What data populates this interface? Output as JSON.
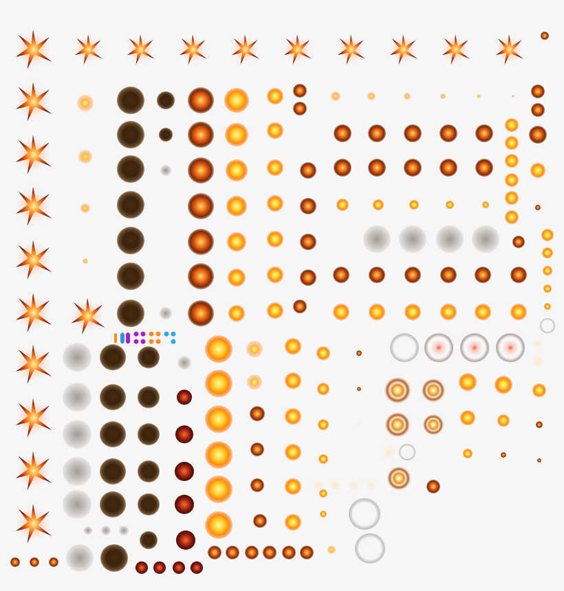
{
  "sheet": {
    "background": "#f6f6f6",
    "palette": {
      "fire_core": "#fff7b0",
      "fire_mid": "#ffd02a",
      "fire_edge": "#ff8a10",
      "burst_dark": "#7a2a08",
      "smoke_dark": "#3a2410",
      "ember_red": "#8a1a10",
      "gem_orange": "#ff8a20",
      "gem_purple": "#a020d0",
      "gem_blue": "#2aa8f0"
    },
    "frame_sets": [
      {
        "name": "spiked-explosion",
        "effect": "fireball-star",
        "frames": 20
      },
      {
        "name": "fireball-glow",
        "effect": "glow",
        "frames": 14
      },
      {
        "name": "dark-smoke",
        "effect": "dark",
        "frames": 19
      },
      {
        "name": "grey-smoke",
        "effect": "smoke",
        "frames": 27
      },
      {
        "name": "burst",
        "effect": "burst",
        "frames": 42
      },
      {
        "name": "bright-fireball",
        "effect": "fireball",
        "frames": 24
      },
      {
        "name": "embers",
        "effect": "ember",
        "frames": 15
      },
      {
        "name": "shockwave-rings",
        "effect": "ringfx",
        "frames": 6
      },
      {
        "name": "smoke-rings",
        "effect": "ghost",
        "frames": 8
      },
      {
        "name": "faint-puffs",
        "effect": "faint",
        "frames": 8
      },
      {
        "name": "gem-icons",
        "effect": "gem",
        "frames": 13
      }
    ]
  }
}
